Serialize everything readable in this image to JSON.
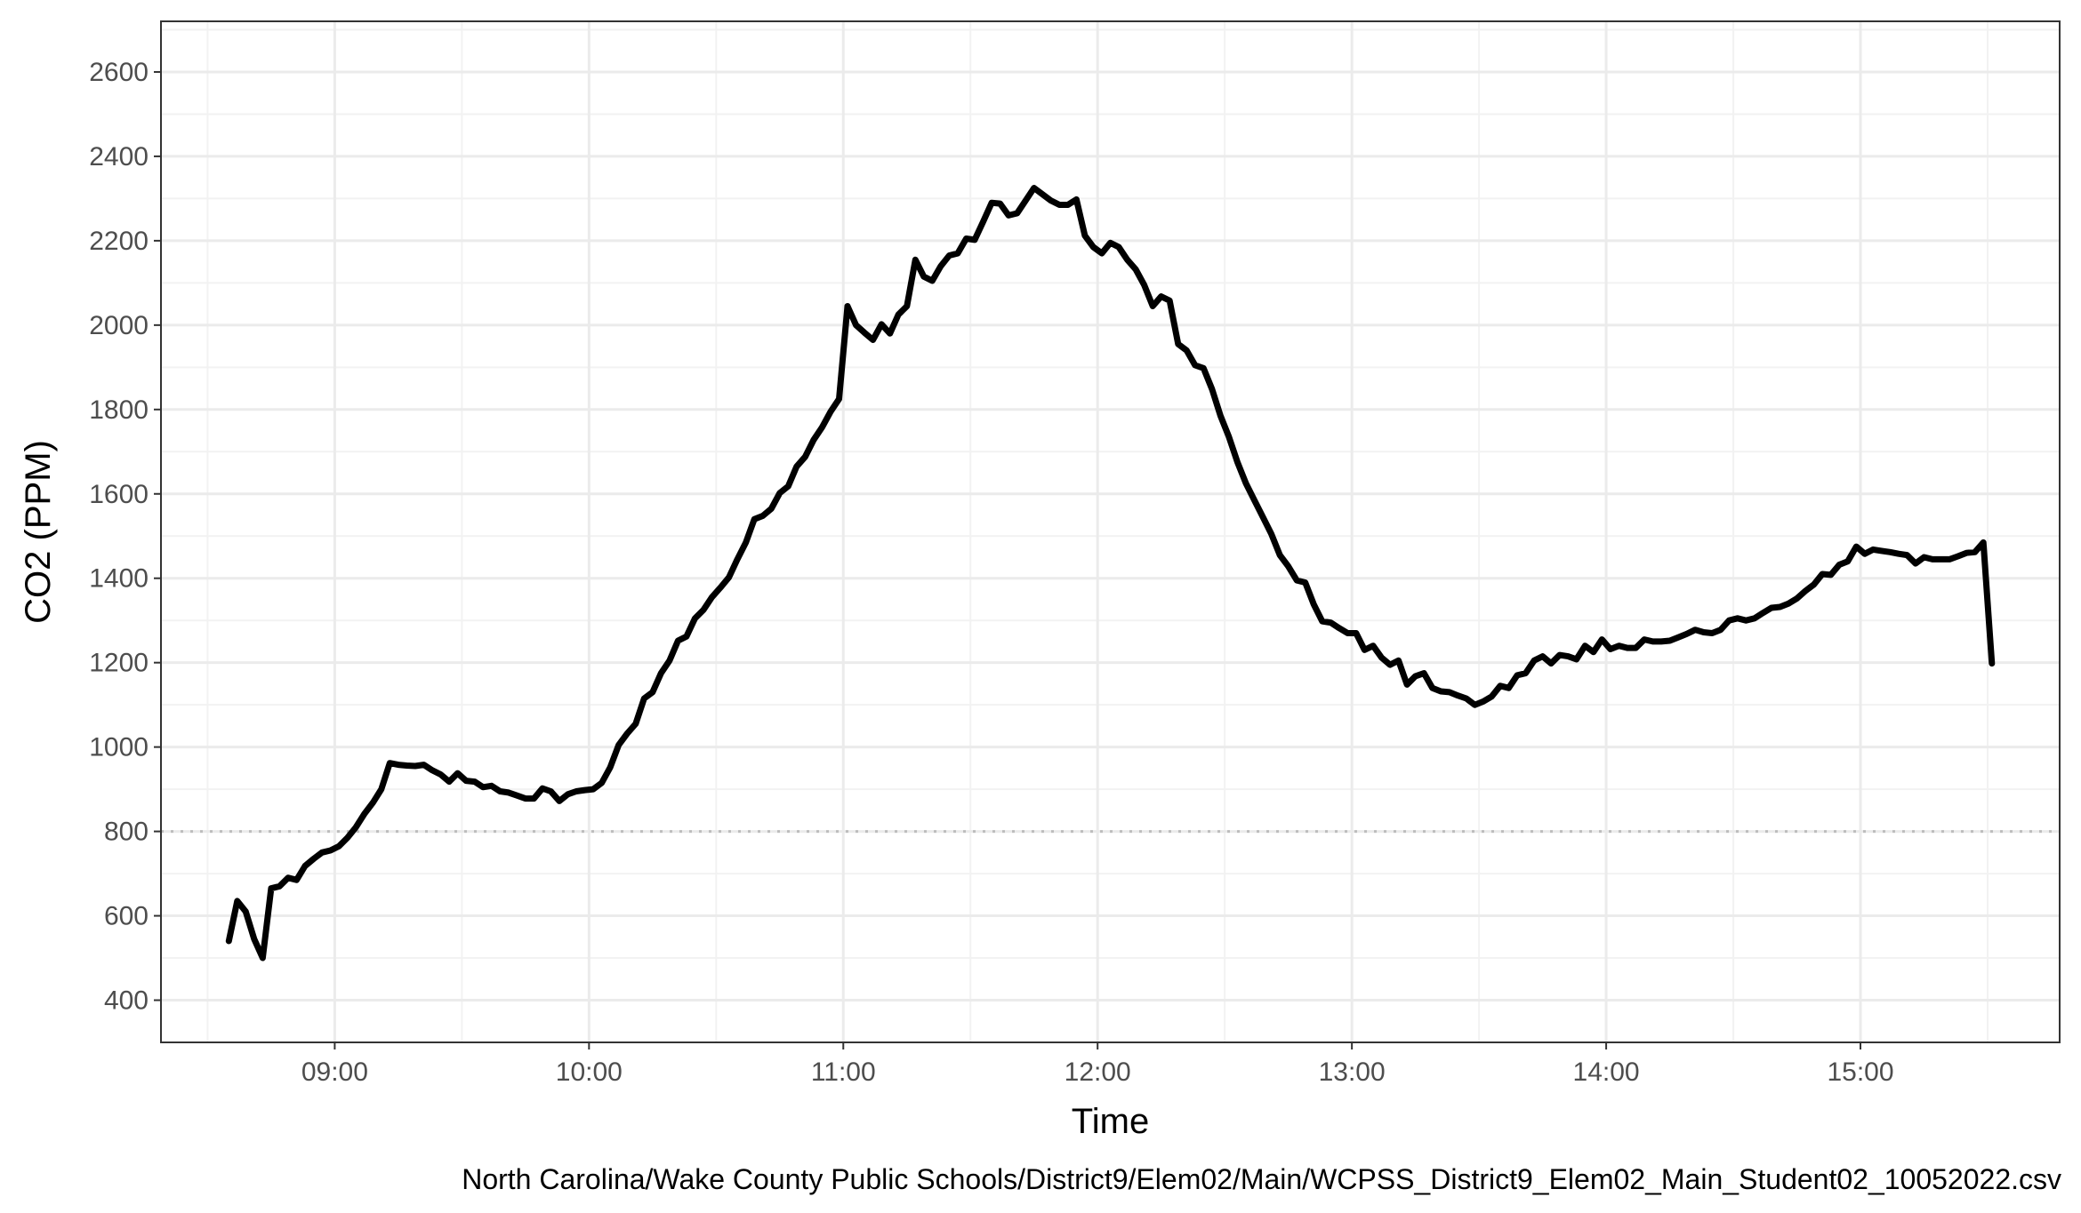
{
  "chart_data": {
    "type": "line",
    "xlabel": "Time",
    "ylabel": "CO2 (PPM)",
    "caption": "North Carolina/Wake County Public Schools/District9/Elem02/Main/WCPSS_District9_Elem02_Main_Student02_10052022.csv",
    "xlim": [
      "08:19",
      "15:47"
    ],
    "ylim": [
      300,
      2720
    ],
    "x_ticks": [
      "09:00",
      "10:00",
      "11:00",
      "12:00",
      "13:00",
      "14:00",
      "15:00"
    ],
    "y_ticks": [
      400,
      600,
      800,
      1000,
      1200,
      1400,
      1600,
      1800,
      2000,
      2200,
      2400,
      2600
    ],
    "grid": true,
    "reference_line": {
      "y": 800,
      "style": "dotted",
      "color": "#bdbdbd"
    },
    "line_color": "#000000",
    "series": [
      {
        "x": [
          "08:35",
          "08:37",
          "08:39",
          "08:41",
          "08:43",
          "08:45",
          "08:47",
          "08:49",
          "08:51",
          "08:53",
          "08:55",
          "08:57",
          "08:59",
          "09:01",
          "09:03",
          "09:05",
          "09:07",
          "09:09",
          "09:11",
          "09:13",
          "09:15",
          "09:17",
          "09:19",
          "09:21",
          "09:23",
          "09:25",
          "09:27",
          "09:29",
          "09:31",
          "09:33",
          "09:35",
          "09:37",
          "09:39",
          "09:41",
          "09:43",
          "09:45",
          "09:47",
          "09:49",
          "09:51",
          "09:53",
          "09:55",
          "09:57",
          "09:59",
          "10:01",
          "10:03",
          "10:05",
          "10:07",
          "10:09",
          "10:11",
          "10:13",
          "10:15",
          "10:17",
          "10:19",
          "10:21",
          "10:23",
          "10:25",
          "10:27",
          "10:29",
          "10:31",
          "10:33",
          "10:35",
          "10:37",
          "10:39",
          "10:41",
          "10:43",
          "10:45",
          "10:47",
          "10:49",
          "10:51",
          "10:53",
          "10:55",
          "10:57",
          "10:59",
          "11:01",
          "11:03",
          "11:05",
          "11:07",
          "11:09",
          "11:11",
          "11:13",
          "11:15",
          "11:17",
          "11:19",
          "11:21",
          "11:23",
          "11:25",
          "11:27",
          "11:29",
          "11:31",
          "11:33",
          "11:35",
          "11:37",
          "11:39",
          "11:41",
          "11:43",
          "11:45",
          "11:47",
          "11:49",
          "11:51",
          "11:53",
          "11:55",
          "11:57",
          "11:59",
          "12:01",
          "12:03",
          "12:05",
          "12:07",
          "12:09",
          "12:11",
          "12:13",
          "12:15",
          "12:17",
          "12:19",
          "12:21",
          "12:23",
          "12:25",
          "12:27",
          "12:29",
          "12:31",
          "12:33",
          "12:35",
          "12:37",
          "12:39",
          "12:41",
          "12:43",
          "12:45",
          "12:47",
          "12:49",
          "12:51",
          "12:53",
          "12:55",
          "12:57",
          "12:59",
          "13:01",
          "13:03",
          "13:05",
          "13:07",
          "13:09",
          "13:11",
          "13:13",
          "13:15",
          "13:17",
          "13:19",
          "13:21",
          "13:23",
          "13:25",
          "13:27",
          "13:29",
          "13:31",
          "13:33",
          "13:35",
          "13:37",
          "13:39",
          "13:41",
          "13:43",
          "13:45",
          "13:47",
          "13:49",
          "13:51",
          "13:53",
          "13:55",
          "13:57",
          "13:59",
          "14:01",
          "14:03",
          "14:05",
          "14:07",
          "14:09",
          "14:11",
          "14:13",
          "14:15",
          "14:17",
          "14:19",
          "14:21",
          "14:23",
          "14:25",
          "14:27",
          "14:29",
          "14:31",
          "14:33",
          "14:35",
          "14:37",
          "14:39",
          "14:41",
          "14:43",
          "14:45",
          "14:47",
          "14:49",
          "14:51",
          "14:53",
          "14:55",
          "14:57",
          "14:59",
          "15:01",
          "15:03",
          "15:05",
          "15:07",
          "15:09",
          "15:11",
          "15:13",
          "15:15",
          "15:17",
          "15:19",
          "15:21",
          "15:23",
          "15:25",
          "15:27",
          "15:29",
          "15:31"
        ],
        "y": [
          540,
          635,
          610,
          545,
          500,
          665,
          670,
          690,
          685,
          718,
          735,
          750,
          755,
          765,
          785,
          810,
          842,
          868,
          900,
          962,
          958,
          956,
          955,
          958,
          945,
          935,
          918,
          938,
          920,
          918,
          905,
          908,
          895,
          892,
          885,
          878,
          878,
          902,
          895,
          872,
          888,
          895,
          898,
          900,
          915,
          952,
          1005,
          1032,
          1055,
          1115,
          1130,
          1175,
          1205,
          1252,
          1262,
          1305,
          1325,
          1355,
          1378,
          1402,
          1445,
          1485,
          1540,
          1548,
          1565,
          1602,
          1618,
          1665,
          1688,
          1728,
          1758,
          1795,
          1825,
          2045,
          2000,
          1982,
          1965,
          2002,
          1980,
          2025,
          2045,
          2155,
          2115,
          2105,
          2140,
          2165,
          2170,
          2205,
          2202,
          2245,
          2290,
          2288,
          2260,
          2265,
          2295,
          2325,
          2310,
          2295,
          2285,
          2285,
          2298,
          2212,
          2185,
          2170,
          2195,
          2185,
          2155,
          2132,
          2095,
          2045,
          2068,
          2058,
          1955,
          1940,
          1905,
          1898,
          1848,
          1785,
          1735,
          1675,
          1625,
          1585,
          1545,
          1505,
          1455,
          1428,
          1395,
          1390,
          1338,
          1298,
          1295,
          1282,
          1270,
          1270,
          1230,
          1240,
          1212,
          1195,
          1205,
          1148,
          1168,
          1175,
          1140,
          1132,
          1130,
          1122,
          1115,
          1100,
          1108,
          1120,
          1145,
          1140,
          1170,
          1175,
          1205,
          1215,
          1198,
          1218,
          1215,
          1208,
          1240,
          1225,
          1255,
          1232,
          1240,
          1235,
          1235,
          1255,
          1250,
          1250,
          1252,
          1260,
          1268,
          1278,
          1272,
          1270,
          1278,
          1300,
          1305,
          1300,
          1305,
          1318,
          1330,
          1332,
          1340,
          1352,
          1370,
          1385,
          1410,
          1408,
          1432,
          1440,
          1475,
          1458,
          1468,
          1465,
          1462,
          1458,
          1455,
          1435,
          1450,
          1445,
          1445,
          1445,
          1452,
          1460,
          1462,
          1485,
          1198
        ]
      }
    ]
  }
}
